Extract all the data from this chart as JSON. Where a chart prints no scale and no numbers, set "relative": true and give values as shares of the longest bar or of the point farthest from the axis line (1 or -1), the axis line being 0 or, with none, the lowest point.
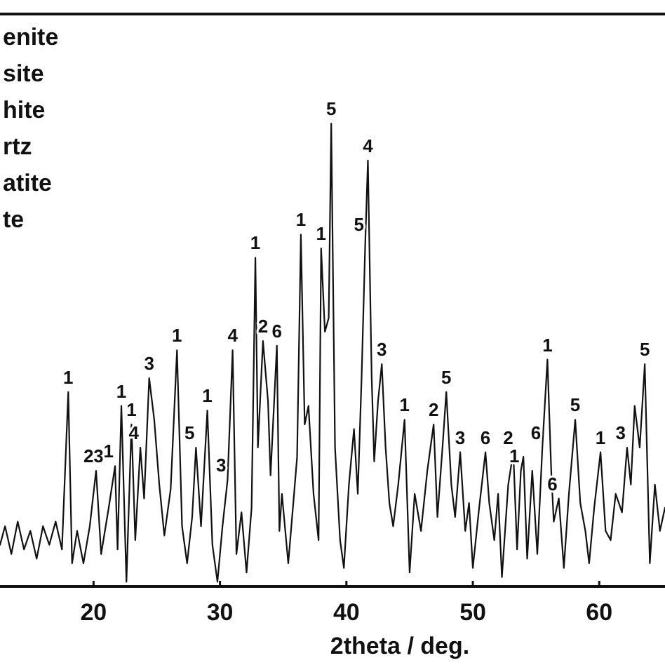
{
  "chart_data": {
    "type": "line",
    "relative": true,
    "xlabel": "2theta / deg.",
    "xlim": [
      12.6,
      65.2
    ],
    "xticks": [
      20,
      30,
      40,
      50,
      60
    ],
    "tick_labels": "x",
    "grid": false,
    "marker": "none",
    "line_style": "solid",
    "series": [
      {
        "color": "#111111",
        "x": [
          12.6,
          13,
          13.5,
          14,
          14.5,
          15,
          15.5,
          16,
          16.5,
          17,
          17.5,
          18,
          18.3,
          18.7,
          19.2,
          19.7,
          20.2,
          20.6,
          21.2,
          21.7,
          21.9,
          22.2,
          22.6,
          23.0,
          23.3,
          23.7,
          24.0,
          24.4,
          24.8,
          25.2,
          25.6,
          26.1,
          26.6,
          27.0,
          27.4,
          27.8,
          28.1,
          28.5,
          29.0,
          29.4,
          29.8,
          30.2,
          30.6,
          31.0,
          31.3,
          31.7,
          32.1,
          32.5,
          32.8,
          33.0,
          33.4,
          33.8,
          34.0,
          34.5,
          34.7,
          34.9,
          35.4,
          35.8,
          36.1,
          36.4,
          36.7,
          37.0,
          37.4,
          37.8,
          38.0,
          38.3,
          38.6,
          38.8,
          39.1,
          39.5,
          39.8,
          40.2,
          40.6,
          40.9,
          41.2,
          41.5,
          41.7,
          42.0,
          42.2,
          42.5,
          42.8,
          43.1,
          43.4,
          43.7,
          44.1,
          44.6,
          45.0,
          45.4,
          45.9,
          46.4,
          46.9,
          47.2,
          47.6,
          47.9,
          48.3,
          48.6,
          49.0,
          49.4,
          49.7,
          50.0,
          50.5,
          51.0,
          51.3,
          51.7,
          52.0,
          52.3,
          52.8,
          53.2,
          53.5,
          53.8,
          54.0,
          54.3,
          54.7,
          55.1,
          55.5,
          55.9,
          56.2,
          56.4,
          56.8,
          57.2,
          57.6,
          58.1,
          58.5,
          58.9,
          59.2,
          59.6,
          60.1,
          60.5,
          60.9,
          61.3,
          61.8,
          62.2,
          62.5,
          62.8,
          63.2,
          63.6,
          64.0,
          64.4,
          64.8,
          65.2
        ],
        "values": [
          0.09,
          0.13,
          0.07,
          0.14,
          0.08,
          0.12,
          0.06,
          0.13,
          0.09,
          0.14,
          0.08,
          0.42,
          0.05,
          0.12,
          0.05,
          0.13,
          0.25,
          0.07,
          0.17,
          0.26,
          0.08,
          0.39,
          0.01,
          0.35,
          0.1,
          0.3,
          0.19,
          0.45,
          0.36,
          0.22,
          0.11,
          0.21,
          0.51,
          0.13,
          0.05,
          0.15,
          0.3,
          0.13,
          0.38,
          0.09,
          0.01,
          0.13,
          0.23,
          0.51,
          0.07,
          0.16,
          0.03,
          0.17,
          0.71,
          0.3,
          0.53,
          0.4,
          0.24,
          0.52,
          0.12,
          0.2,
          0.05,
          0.18,
          0.28,
          0.76,
          0.35,
          0.39,
          0.2,
          0.1,
          0.73,
          0.55,
          0.58,
          1.0,
          0.3,
          0.1,
          0.04,
          0.22,
          0.34,
          0.2,
          0.45,
          0.75,
          0.92,
          0.45,
          0.27,
          0.4,
          0.48,
          0.3,
          0.18,
          0.13,
          0.22,
          0.36,
          0.03,
          0.2,
          0.12,
          0.25,
          0.35,
          0.15,
          0.3,
          0.42,
          0.22,
          0.15,
          0.29,
          0.12,
          0.18,
          0.04,
          0.17,
          0.29,
          0.18,
          0.1,
          0.2,
          0.02,
          0.22,
          0.29,
          0.08,
          0.25,
          0.28,
          0.06,
          0.25,
          0.07,
          0.3,
          0.49,
          0.25,
          0.14,
          0.19,
          0.04,
          0.2,
          0.36,
          0.18,
          0.12,
          0.05,
          0.17,
          0.29,
          0.12,
          0.1,
          0.2,
          0.16,
          0.3,
          0.22,
          0.39,
          0.3,
          0.48,
          0.05,
          0.22,
          0.12,
          0.17
        ]
      }
    ],
    "annotations": [
      "enite",
      "site",
      "hite",
      "rtz",
      "atite",
      "te",
      {
        "text": "1",
        "x": 18.0,
        "y": 0.42
      },
      {
        "text": "23",
        "x": 20.0,
        "y": 0.25
      },
      {
        "text": "1",
        "x": 21.7,
        "y": 0.26
      },
      {
        "text": "1",
        "x": 22.2,
        "y": 0.39
      },
      {
        "text": "1",
        "x": 23.0,
        "y": 0.35
      },
      {
        "text": "4",
        "x": 23.7,
        "y": 0.3
      },
      {
        "text": "3",
        "x": 24.4,
        "y": 0.45
      },
      {
        "text": "1",
        "x": 26.6,
        "y": 0.51
      },
      {
        "text": "5",
        "x": 28.1,
        "y": 0.3
      },
      {
        "text": "1",
        "x": 29.0,
        "y": 0.38
      },
      {
        "text": "3",
        "x": 30.6,
        "y": 0.23
      },
      {
        "text": "4",
        "x": 31.0,
        "y": 0.51
      },
      {
        "text": "1",
        "x": 32.8,
        "y": 0.71
      },
      {
        "text": "2",
        "x": 33.4,
        "y": 0.53
      },
      {
        "text": "6",
        "x": 34.5,
        "y": 0.52
      },
      {
        "text": "1",
        "x": 36.4,
        "y": 0.76
      },
      {
        "text": "1",
        "x": 38.0,
        "y": 0.73
      },
      {
        "text": "5",
        "x": 38.8,
        "y": 1.0
      },
      {
        "text": "5",
        "x": 41.5,
        "y": 0.75
      },
      {
        "text": "4",
        "x": 41.7,
        "y": 0.92
      },
      {
        "text": "3",
        "x": 42.8,
        "y": 0.48
      },
      {
        "text": "1",
        "x": 44.6,
        "y": 0.36
      },
      {
        "text": "2",
        "x": 46.9,
        "y": 0.35
      },
      {
        "text": "5",
        "x": 47.9,
        "y": 0.42
      },
      {
        "text": "3",
        "x": 49.0,
        "y": 0.29
      },
      {
        "text": "6",
        "x": 51.0,
        "y": 0.29
      },
      {
        "text": "2",
        "x": 52.8,
        "y": 0.29
      },
      {
        "text": "1",
        "x": 53.8,
        "y": 0.25
      },
      {
        "text": "6",
        "x": 55.5,
        "y": 0.3
      },
      {
        "text": "1",
        "x": 55.9,
        "y": 0.49
      },
      {
        "text": "6",
        "x": 56.8,
        "y": 0.19
      },
      {
        "text": "5",
        "x": 58.1,
        "y": 0.36
      },
      {
        "text": "1",
        "x": 60.1,
        "y": 0.29
      },
      {
        "text": "3",
        "x": 62.2,
        "y": 0.3
      },
      {
        "text": "5",
        "x": 63.6,
        "y": 0.48
      }
    ]
  }
}
